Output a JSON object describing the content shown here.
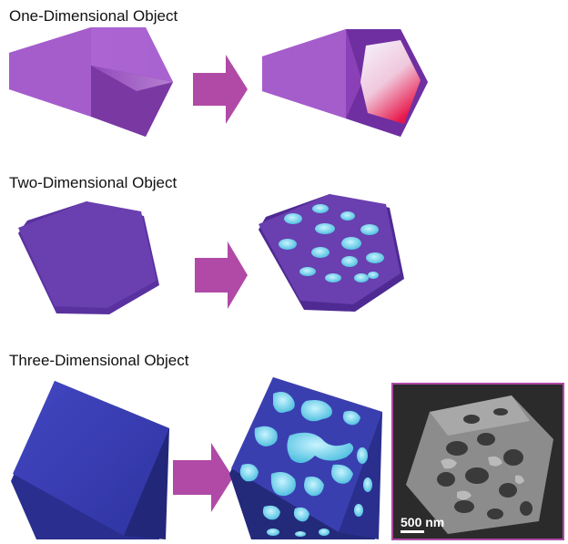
{
  "rows": [
    {
      "title": "One-Dimensional Object"
    },
    {
      "title": "Two-Dimensional Object"
    },
    {
      "title": "Three-Dimensional Object"
    }
  ],
  "micrograph": {
    "scale_label": "500 nm"
  },
  "colors": {
    "prism": "#8e44b8",
    "plate": "#6a3fb0",
    "cube": "#3a3fb0",
    "arrow": "#b04aa6",
    "pore": "#5fd0e6",
    "hole_gradient": [
      "#f4f0ff",
      "#e8174a"
    ]
  }
}
